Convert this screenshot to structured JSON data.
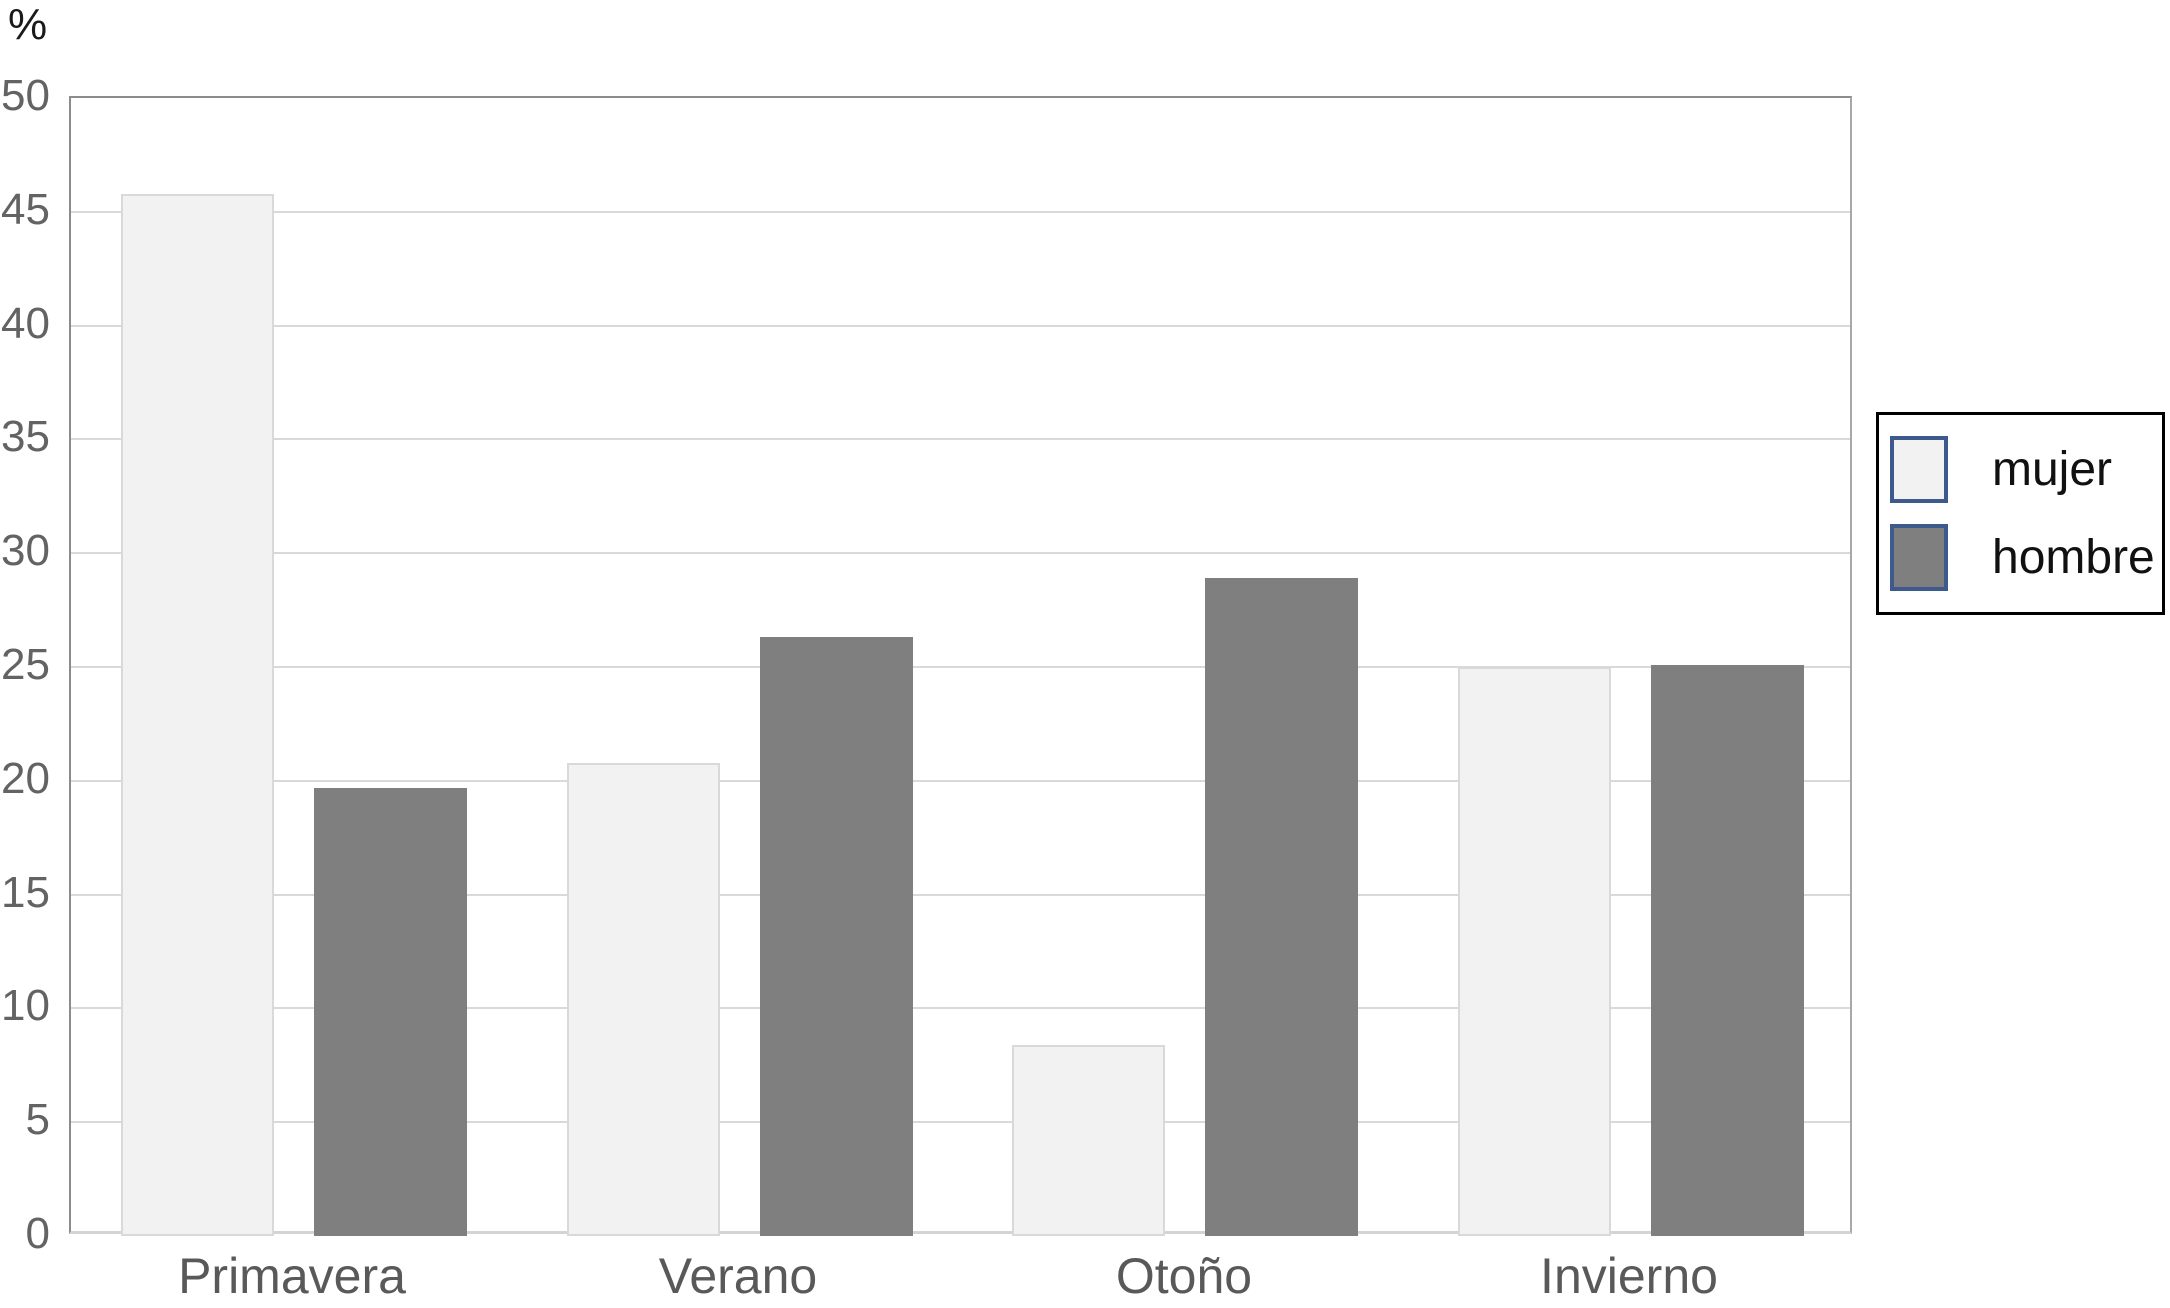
{
  "chart_data": {
    "type": "bar",
    "title": "",
    "xlabel": "",
    "ylabel": "%",
    "categories": [
      "Primavera",
      "Verano",
      "Otoño",
      "Invierno"
    ],
    "series": [
      {
        "name": "mujer",
        "values": [
          45.8,
          20.8,
          8.4,
          25.0
        ]
      },
      {
        "name": "hombre",
        "values": [
          19.7,
          26.3,
          28.9,
          25.1
        ]
      }
    ],
    "ylim": [
      0,
      50
    ],
    "yticks": [
      0,
      5,
      10,
      15,
      20,
      25,
      30,
      35,
      40,
      45,
      50
    ],
    "grid": true,
    "legend_position": "right",
    "colors": {
      "mujer_fill": "#f2f2f2",
      "mujer_border": "#d9d9d9",
      "hombre_fill": "#7f7f7f",
      "gridline": "#d9d9d9",
      "axis_border": "#8c8c8c",
      "baseline": "#d4d4d4",
      "tick_text": "#636363",
      "category_text": "#595959",
      "legend_swatch_border": "#3e5a8c",
      "legend_box_border": "#000000",
      "legend_text": "#111111"
    }
  }
}
